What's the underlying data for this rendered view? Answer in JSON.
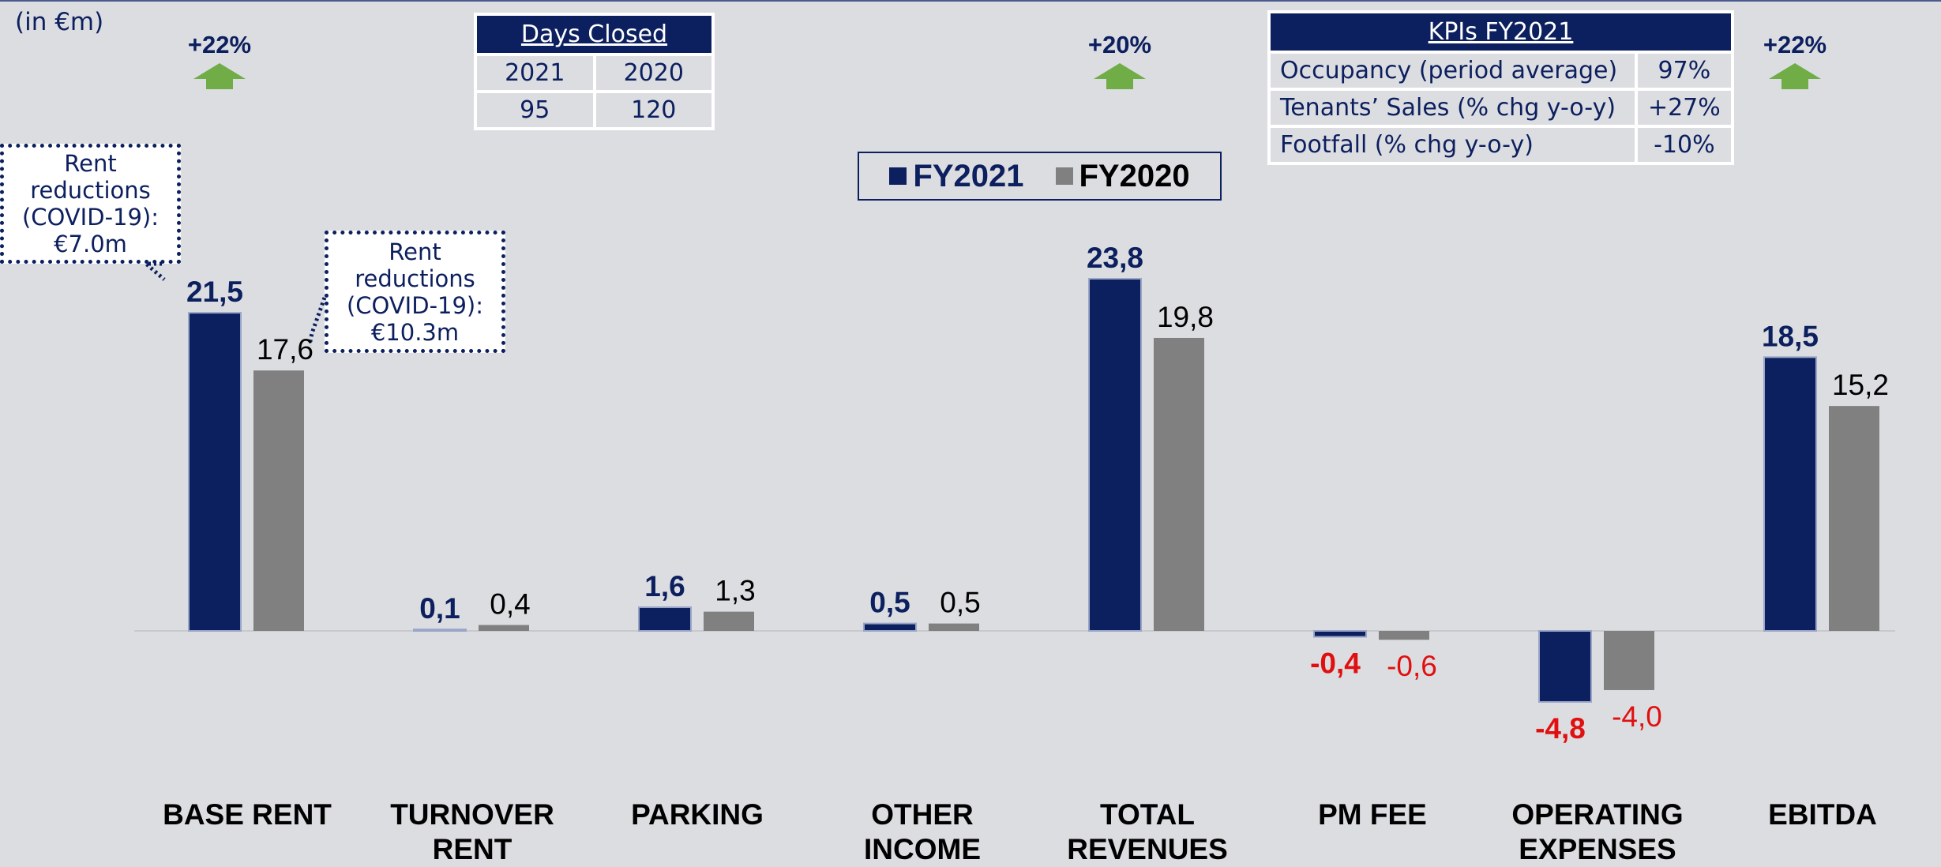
{
  "chart_data": {
    "type": "bar",
    "unit_label": "(in €m)",
    "categories": [
      "BASE RENT",
      "TURNOVER RENT",
      "PARKING",
      "OTHER INCOME",
      "TOTAL REVENUES",
      "PM FEE",
      "OPERATING EXPENSES",
      "EBITDA"
    ],
    "series": [
      {
        "name": "FY2021",
        "color": "#0c1f5e",
        "values": [
          21.5,
          0.1,
          1.6,
          0.5,
          23.8,
          -0.4,
          -4.8,
          18.5
        ],
        "value_labels": [
          "21,5",
          "0,1",
          "1,6",
          "0,5",
          "23,8",
          "-0,4",
          "-4,8",
          "18,5"
        ]
      },
      {
        "name": "FY2020",
        "color": "#808080",
        "values": [
          17.6,
          0.4,
          1.3,
          0.5,
          19.8,
          -0.6,
          -4.0,
          15.2
        ],
        "value_labels": [
          "17,6",
          "0,4",
          "1,3",
          "0,5",
          "19,8",
          "-0,6",
          "-4,0",
          "15,2"
        ]
      }
    ],
    "growth_labels": [
      "+22%",
      "+20%",
      "+22%"
    ],
    "callouts": [
      "Rent reductions (COVID-19): €7.0m",
      "Rent reductions (COVID-19): €10.3m"
    ],
    "days_closed": {
      "title": "Days Closed",
      "header": [
        "2021",
        "2020"
      ],
      "values": [
        "95",
        "120"
      ]
    },
    "kpis": {
      "title": "KPIs FY2021",
      "rows": [
        [
          "Occupancy (period average)",
          "97%"
        ],
        [
          "Tenants’ Sales (% chg y-o-y)",
          "+27%"
        ],
        [
          "Footfall (% chg y-o-y)",
          "-10%"
        ]
      ]
    }
  }
}
